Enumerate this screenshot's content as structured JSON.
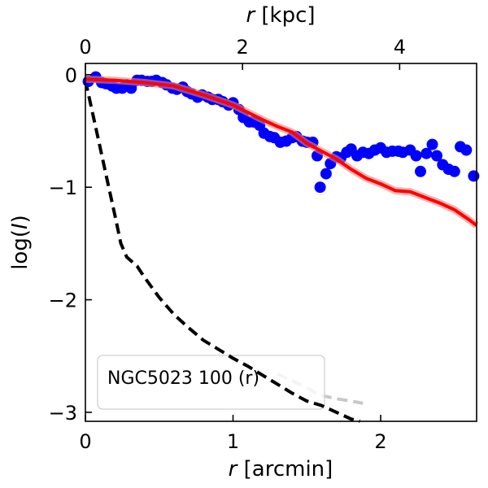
{
  "chart_data": {
    "type": "scatter",
    "title": "",
    "xlabel_pre": "r",
    "xlabel_post": " [arcmin]",
    "top_xlabel_pre": "r",
    "top_xlabel_post": " [kpc]",
    "ylabel_pre": "log(",
    "ylabel_italic": "I",
    "ylabel_post": ")",
    "xlim": [
      0,
      2.65
    ],
    "ylim": [
      -3.08,
      0.1
    ],
    "top_xlim": [
      0,
      4.98
    ],
    "x_ticks": [
      0,
      1,
      2
    ],
    "x_tick_labels": [
      "0",
      "1",
      "2"
    ],
    "top_x_ticks": [
      0,
      2,
      4
    ],
    "top_x_tick_labels": [
      "0",
      "2",
      "4"
    ],
    "y_ticks": [
      0,
      -1,
      -2,
      -3
    ],
    "y_tick_labels": [
      "0",
      "−1",
      "−2",
      "−3"
    ],
    "legend_label": "NGC5023 100 (r)",
    "legend_position": "lower-left",
    "colors": {
      "points": "#0000ff",
      "model": "#ff0000",
      "band": "#f08080",
      "psf": "#000000",
      "psf_masked": "#c8c8c8"
    },
    "series": [
      {
        "name": "observed profile",
        "kind": "points",
        "x": [
          0.02,
          0.07,
          0.11,
          0.14,
          0.18,
          0.21,
          0.25,
          0.28,
          0.31,
          0.35,
          0.38,
          0.42,
          0.45,
          0.48,
          0.52,
          0.55,
          0.59,
          0.62,
          0.66,
          0.69,
          0.72,
          0.76,
          0.79,
          0.83,
          0.86,
          0.9,
          0.93,
          0.97,
          1.0,
          1.04,
          1.07,
          1.11,
          1.14,
          1.18,
          1.21,
          1.25,
          1.28,
          1.32,
          1.36,
          1.4,
          1.43,
          1.47,
          1.5,
          1.54,
          1.57,
          1.59,
          1.63,
          1.66,
          1.7,
          1.73,
          1.77,
          1.8,
          1.84,
          1.88,
          1.92,
          1.96,
          2.0,
          2.04,
          2.08,
          2.12,
          2.15,
          2.2,
          2.24,
          2.27,
          2.31,
          2.35,
          2.38,
          2.42,
          2.46,
          2.5,
          2.54,
          2.58,
          2.63
        ],
        "y": [
          -0.06,
          -0.02,
          -0.07,
          -0.08,
          -0.1,
          -0.12,
          -0.12,
          -0.09,
          -0.12,
          -0.05,
          -0.05,
          -0.06,
          -0.06,
          -0.05,
          -0.07,
          -0.09,
          -0.12,
          -0.13,
          -0.11,
          -0.15,
          -0.17,
          -0.2,
          -0.18,
          -0.2,
          -0.22,
          -0.22,
          -0.24,
          -0.27,
          -0.25,
          -0.31,
          -0.38,
          -0.42,
          -0.42,
          -0.45,
          -0.52,
          -0.55,
          -0.56,
          -0.6,
          -0.59,
          -0.56,
          -0.55,
          -0.59,
          -0.6,
          -0.6,
          -0.72,
          -1.0,
          -0.88,
          -0.79,
          -0.73,
          -0.74,
          -0.69,
          -0.66,
          -0.72,
          -0.69,
          -0.7,
          -0.67,
          -0.65,
          -0.69,
          -0.68,
          -0.68,
          -0.69,
          -0.67,
          -0.72,
          -0.86,
          -0.7,
          -0.62,
          -0.72,
          -0.8,
          -0.84,
          -0.86,
          -0.64,
          -0.67,
          -0.9
        ]
      },
      {
        "name": "model fit",
        "kind": "line",
        "x": [
          0.0,
          0.2,
          0.4,
          0.6,
          0.8,
          1.0,
          1.2,
          1.3,
          1.4,
          1.5,
          1.6,
          1.7,
          1.8,
          1.9,
          2.0,
          2.1,
          2.2,
          2.3,
          2.4,
          2.5,
          2.6,
          2.65
        ],
        "y": [
          -0.04,
          -0.05,
          -0.07,
          -0.1,
          -0.18,
          -0.27,
          -0.4,
          -0.46,
          -0.51,
          -0.61,
          -0.68,
          -0.75,
          -0.84,
          -0.92,
          -0.97,
          -1.03,
          -1.04,
          -1.09,
          -1.14,
          -1.2,
          -1.29,
          -1.34
        ]
      },
      {
        "name": "psf profile",
        "kind": "dashed-line",
        "x": [
          0.0,
          0.05,
          0.1,
          0.15,
          0.2,
          0.24,
          0.28,
          0.35,
          0.4,
          0.5,
          0.6,
          0.7,
          0.8,
          0.9,
          1.0,
          1.1,
          1.2,
          1.3,
          1.4,
          1.5,
          1.6,
          1.7,
          1.8,
          1.86
        ],
        "y": [
          -0.05,
          -0.35,
          -0.65,
          -0.95,
          -1.25,
          -1.5,
          -1.62,
          -1.7,
          -1.8,
          -1.98,
          -2.13,
          -2.25,
          -2.36,
          -2.44,
          -2.52,
          -2.59,
          -2.67,
          -2.75,
          -2.83,
          -2.9,
          -2.94,
          -3.0,
          -3.06,
          -3.08
        ]
      },
      {
        "name": "psf profile (masked)",
        "kind": "dashed-line-light",
        "x": [
          1.3,
          1.4,
          1.5,
          1.55,
          1.6,
          1.7,
          1.8,
          1.88
        ],
        "y": [
          -2.66,
          -2.72,
          -2.78,
          -2.82,
          -2.85,
          -2.88,
          -2.9,
          -2.92
        ]
      }
    ]
  }
}
